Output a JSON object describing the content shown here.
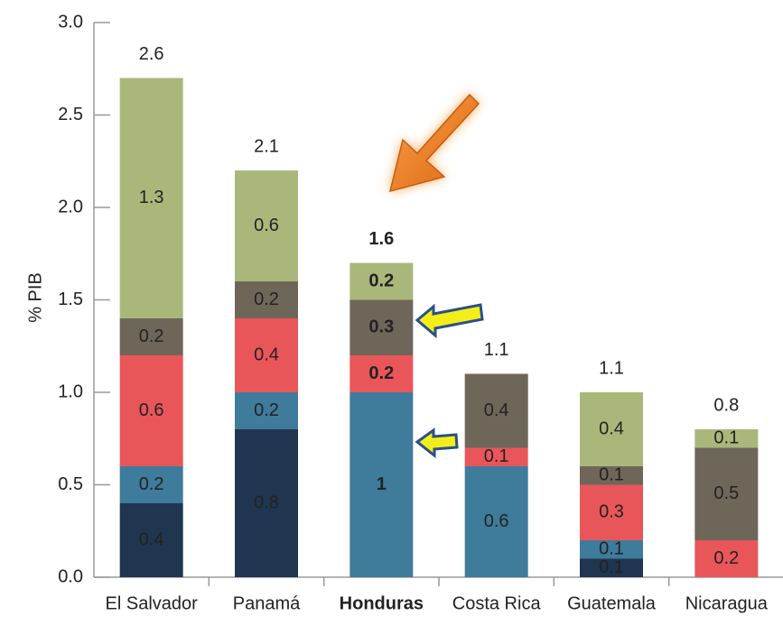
{
  "chart_data": {
    "type": "stacked_bar",
    "y_label": "% PIB",
    "categories": [
      "El Salvador",
      "Panamá",
      "Honduras",
      "Costa Rica",
      "Guatemala",
      "Nicaragua"
    ],
    "series": [
      {
        "color": "#1f3550",
        "label_color": "#ffffff",
        "values": [
          0.4,
          0.8,
          null,
          null,
          0.1,
          null
        ]
      },
      {
        "color": "#3f7b9b",
        "label_color": "#ffffff",
        "values": [
          0.2,
          0.2,
          1.0,
          0.6,
          0.1,
          null
        ]
      },
      {
        "color": "#e9565a",
        "label_color": "#2a2a2a",
        "values": [
          0.6,
          0.4,
          0.2,
          0.1,
          0.3,
          0.2
        ]
      },
      {
        "color": "#6f665a",
        "label_color": "#ffffff",
        "values": [
          0.2,
          0.2,
          0.3,
          0.4,
          0.1,
          0.5
        ]
      },
      {
        "color": "#aab77b",
        "label_color": "#2a2a2a",
        "values": [
          1.3,
          0.6,
          0.2,
          null,
          0.4,
          0.1
        ]
      }
    ],
    "totals": [
      2.6,
      2.1,
      1.6,
      1.1,
      1.1,
      0.8
    ],
    "bold_category": "Honduras",
    "ylim": [
      0,
      3.0
    ],
    "yticks": [
      {
        "value": 0,
        "label": "0.0"
      },
      0.5,
      {
        "value": 1,
        "label": "1.0"
      },
      1.5,
      {
        "value": 2,
        "label": "2.0"
      },
      2.5,
      {
        "value": 3,
        "label": "3.0"
      }
    ],
    "grid": false
  }
}
